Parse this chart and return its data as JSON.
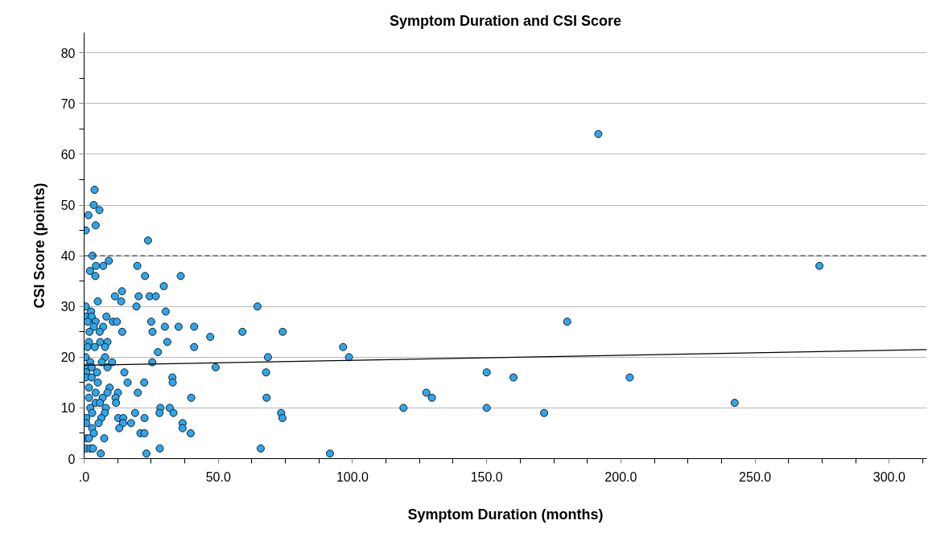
{
  "chart_data": {
    "type": "scatter",
    "title": "Symptom Duration and CSI Score",
    "xlabel": "Symptom Duration (months)",
    "ylabel": "CSI Score (points)",
    "xlim": [
      0,
      314
    ],
    "ylim": [
      0,
      84
    ],
    "xticks": [
      {
        "value": 0,
        "label": ".0"
      },
      {
        "value": 12.5,
        "label": null
      },
      {
        "value": 25,
        "label": null
      },
      {
        "value": 37.5,
        "label": null
      },
      {
        "value": 50,
        "label": "50.0"
      },
      {
        "value": 62.5,
        "label": null
      },
      {
        "value": 75,
        "label": null
      },
      {
        "value": 87.5,
        "label": null
      },
      {
        "value": 100,
        "label": "100.0"
      },
      {
        "value": 112.5,
        "label": null
      },
      {
        "value": 125,
        "label": null
      },
      {
        "value": 137.5,
        "label": null
      },
      {
        "value": 150,
        "label": "150.0"
      },
      {
        "value": 162.5,
        "label": null
      },
      {
        "value": 175,
        "label": null
      },
      {
        "value": 187.5,
        "label": null
      },
      {
        "value": 200,
        "label": "200.0"
      },
      {
        "value": 212.5,
        "label": null
      },
      {
        "value": 225,
        "label": null
      },
      {
        "value": 237.5,
        "label": null
      },
      {
        "value": 250,
        "label": "250.0"
      },
      {
        "value": 262.5,
        "label": null
      },
      {
        "value": 275,
        "label": null
      },
      {
        "value": 287.5,
        "label": null
      },
      {
        "value": 300,
        "label": "300.0"
      },
      {
        "value": 312.5,
        "label": null
      }
    ],
    "yticks": [
      0,
      {
        "value": 5,
        "label": null
      },
      10,
      {
        "value": 15,
        "label": null
      },
      20,
      {
        "value": 25,
        "label": null
      },
      30,
      {
        "value": 35,
        "label": null
      },
      40,
      {
        "value": 45,
        "label": null
      },
      50,
      {
        "value": 55,
        "label": null
      },
      60,
      {
        "value": 65,
        "label": null
      },
      70,
      {
        "value": 75,
        "label": null
      },
      80
    ],
    "grid": "y",
    "marker": "circle",
    "ref_lines": [
      {
        "axis": "y",
        "value": 40,
        "color": "#404040",
        "line_style": "dashed"
      }
    ],
    "series": [
      {
        "color": "#2aa7ef",
        "x": [
          3.9,
          3.6,
          1.6,
          5.7,
          4.3,
          0.6,
          23.8,
          3.1,
          4.4,
          7.1,
          9.2,
          2.2,
          4.2,
          19.8,
          22.7,
          36,
          29.7,
          14.1,
          11.5,
          13.8,
          20.3,
          24.4,
          26.7,
          5.1,
          19.5,
          0.6,
          30.4,
          2.6,
          0.6,
          2.8,
          8.3,
          10.7,
          12.2,
          4.3,
          1.3,
          25,
          3.6,
          7.1,
          2,
          5.8,
          14.2,
          25.5,
          30.1,
          35.2,
          41,
          47,
          41,
          31,
          27.5,
          1.8,
          6,
          8.7,
          1.3,
          4,
          7.8,
          0.6,
          7.8,
          25.4,
          10.4,
          6.6,
          2.3,
          1.3,
          2.8,
          8.7,
          49,
          15,
          0.8,
          4.8,
          0.6,
          2.8,
          16.2,
          22.4,
          5.1,
          32.9,
          33,
          9.5,
          1.8,
          20,
          4.3,
          8.7,
          12.6,
          1.8,
          6.9,
          11.7,
          39.9,
          4.3,
          5.9,
          11.9,
          8.1,
          2.3,
          28.4,
          31.9,
          28.1,
          33.3,
          19,
          3,
          7.7,
          0.8,
          6.4,
          12.7,
          14.6,
          22.5,
          14.5,
          17.5,
          36.7,
          5.4,
          0.8,
          13.1,
          36.7,
          3,
          3.6,
          21,
          22.5,
          39.7,
          0.8,
          7.5,
          1.8,
          0.8,
          2.3,
          3.3,
          28.2,
          6.2,
          23.2,
          64.6,
          59,
          74,
          68.5,
          67.8,
          68,
          73.4,
          73.9,
          65.8,
          96.5,
          98.7,
          91.6,
          191.6,
          274,
          180,
          203.3,
          160,
          150,
          150,
          171.4,
          242.4,
          119,
          127.5,
          129.6
        ],
        "values": [
          53,
          50,
          48,
          49,
          46,
          45,
          43,
          40,
          38,
          38,
          39,
          37,
          36,
          38,
          36,
          36,
          34,
          33,
          32,
          31,
          32,
          32,
          32,
          31,
          30,
          30,
          29,
          29,
          28,
          28,
          28,
          27,
          27,
          27,
          27,
          27,
          26,
          26,
          25,
          25,
          25,
          25,
          26,
          26,
          26,
          24,
          22,
          23,
          21,
          23,
          23,
          23,
          22,
          22,
          22,
          20,
          20,
          19,
          19,
          19,
          19,
          18,
          18,
          18,
          18,
          17,
          17,
          17,
          16,
          16,
          15,
          15,
          15,
          16,
          15,
          14,
          14,
          13,
          13,
          13,
          13,
          12,
          12,
          12,
          12,
          11,
          11,
          11,
          10,
          10,
          10,
          10,
          9,
          9,
          9,
          9,
          9,
          8,
          8,
          8,
          8,
          8,
          7,
          7,
          7,
          7,
          7,
          6,
          6,
          6,
          5,
          5,
          5,
          5,
          4,
          4,
          4,
          2,
          2,
          2,
          2,
          1,
          1,
          30,
          25,
          25,
          20,
          17,
          12,
          9,
          8,
          2,
          22,
          20,
          1,
          64,
          38,
          27,
          16,
          16,
          17,
          10,
          9,
          11,
          10,
          13,
          12
        ]
      },
      {
        "type": "line",
        "marker": "none",
        "color": "#000000",
        "x": [
          0,
          314
        ],
        "values": [
          18.4,
          21.5
        ]
      }
    ]
  }
}
